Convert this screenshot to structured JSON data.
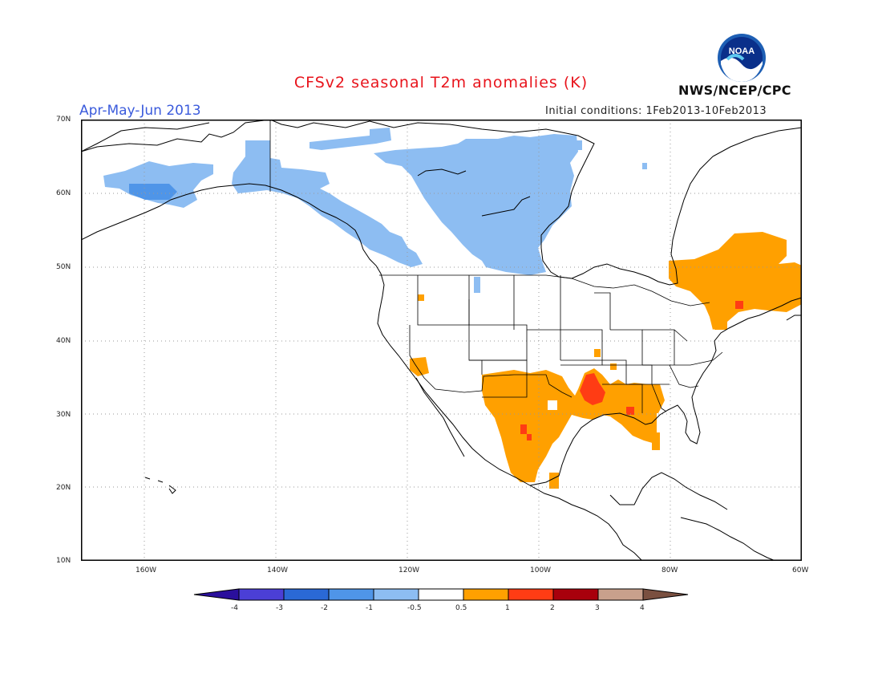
{
  "title": "CFSv2 seasonal T2m anomalies (K)",
  "period": "Apr-May-Jun 2013",
  "initial_conditions": "Initial conditions: 1Feb2013-10Feb2013",
  "agency": "NWS/NCEP/CPC",
  "logo_text": "NOAA",
  "lat_labels": [
    "70N",
    "60N",
    "50N",
    "40N",
    "30N",
    "20N",
    "10N"
  ],
  "lon_labels": [
    "160W",
    "140W",
    "120W",
    "100W",
    "80W",
    "60W"
  ],
  "colorbar": {
    "labels": [
      "-4",
      "-3",
      "-2",
      "-1",
      "-0.5",
      "0.5",
      "1",
      "2",
      "3",
      "4"
    ],
    "colors": [
      "#2a0f9c",
      "#4b3fd6",
      "#2a69d6",
      "#4f95e8",
      "#8dbdf2",
      "#ffffff",
      "#ffa000",
      "#ff3c14",
      "#a8000c",
      "#c8a08c",
      "#7a5040"
    ]
  },
  "colors": {
    "title": "#e8141c",
    "period": "#3b5bdc",
    "land_outline": "#000000",
    "grid": "#999999"
  }
}
